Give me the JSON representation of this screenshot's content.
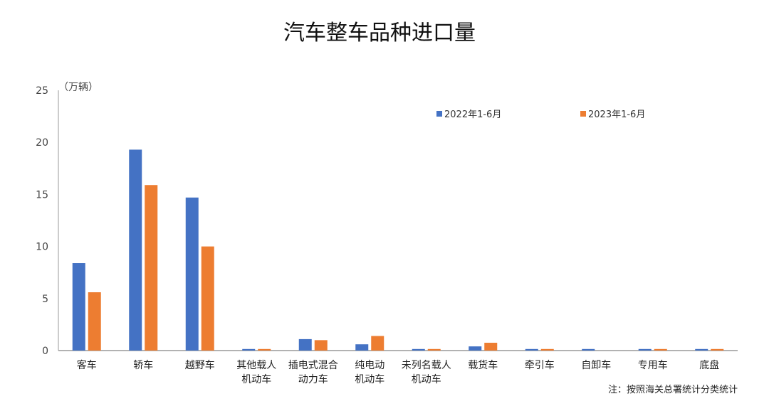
{
  "chart_data": {
    "type": "bar",
    "title": "汽车整车品种进口量",
    "ylabel": "（万辆）",
    "xlabel": "",
    "ylim": [
      0,
      25
    ],
    "yticks": [
      "0",
      "5",
      "10",
      "15",
      "20",
      "25"
    ],
    "grid": false,
    "legend_position": "top-right",
    "categories": [
      [
        "客车"
      ],
      [
        "轿车"
      ],
      [
        "越野车"
      ],
      [
        "其他载人",
        "机动车"
      ],
      [
        "插电式混合",
        "动力车"
      ],
      [
        "纯电动",
        "机动车"
      ],
      [
        "未列名载人",
        "机动车"
      ],
      [
        "载货车"
      ],
      [
        "牵引车"
      ],
      [
        "自卸车"
      ],
      [
        "专用车"
      ],
      [
        "底盘"
      ]
    ],
    "series": [
      {
        "name": "2022年1-6月",
        "color": "#4472C4",
        "values": [
          8.4,
          19.3,
          14.7,
          0.15,
          1.1,
          0.6,
          0.15,
          0.4,
          0.15,
          0.15,
          0.15,
          0.15
        ]
      },
      {
        "name": "2023年1-6月",
        "color": "#ED7D31",
        "values": [
          5.6,
          15.9,
          10.0,
          0.15,
          1.0,
          1.4,
          0.15,
          0.75,
          0.15,
          0,
          0.15,
          0.15
        ]
      }
    ],
    "note": "注：按照海关总署统计分类统计"
  }
}
